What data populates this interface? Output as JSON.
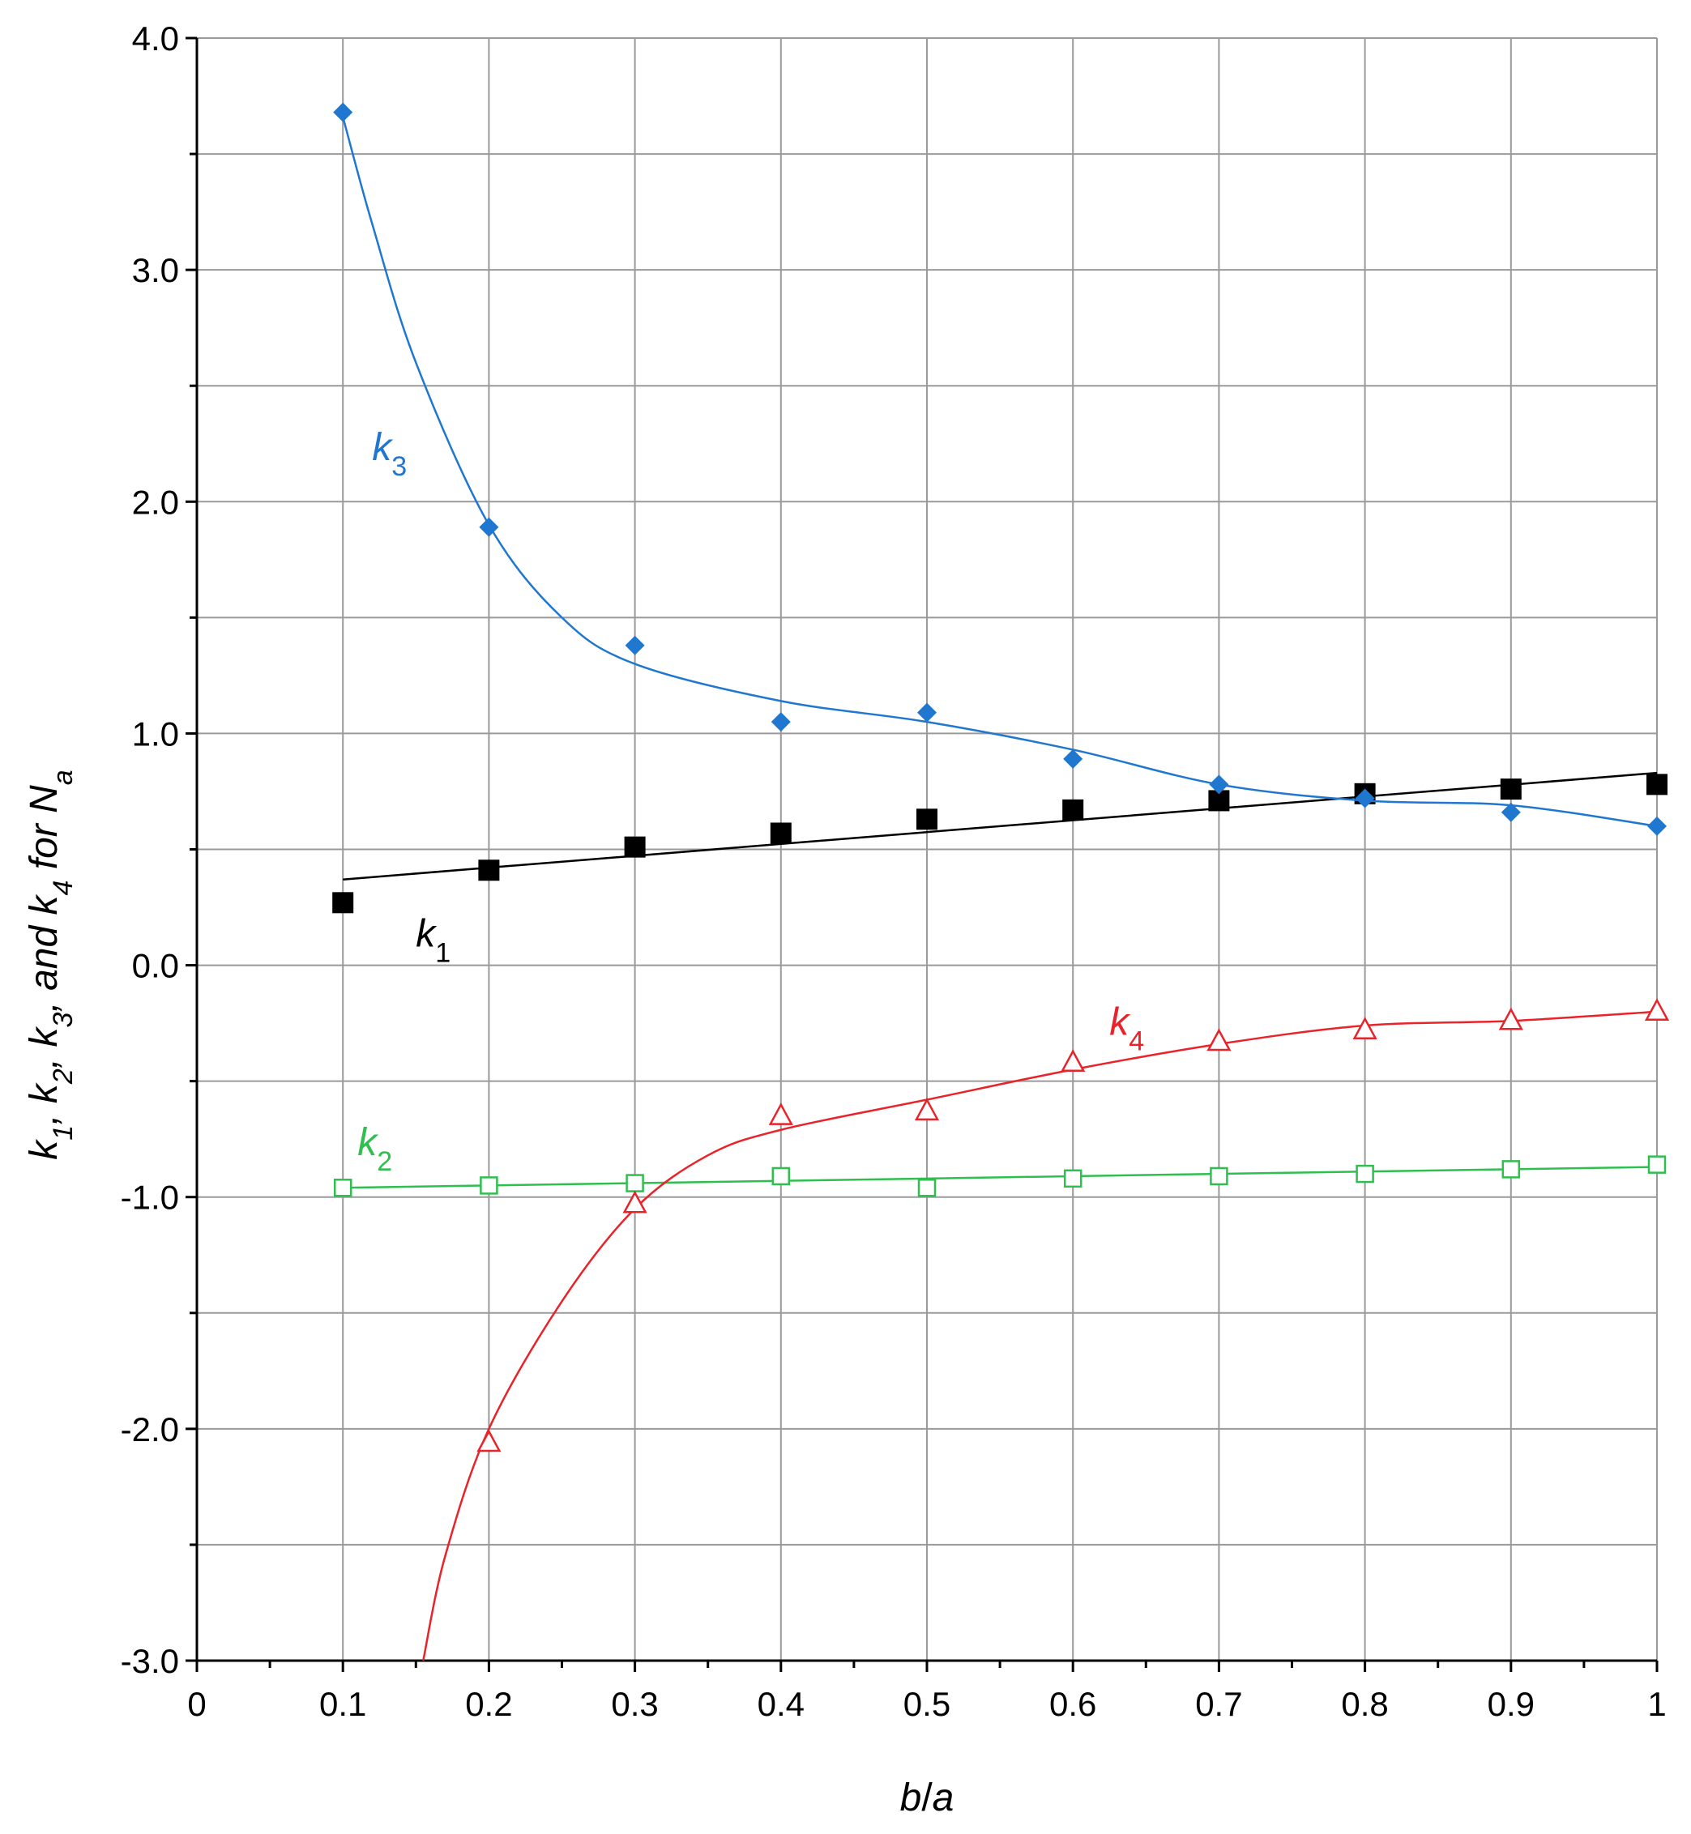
{
  "chart_data": {
    "type": "scatter",
    "title": "",
    "xlabel": {
      "main": "b",
      "sep": "/",
      "tail": "a"
    },
    "ylabel": {
      "parts": [
        {
          "t": "k"
        },
        {
          "t": "1",
          "sub": true
        },
        {
          "t": ", "
        },
        {
          "t": "k"
        },
        {
          "t": "2",
          "sub": true
        },
        {
          "t": ", "
        },
        {
          "t": "k"
        },
        {
          "t": "3",
          "sub": true
        },
        {
          "t": ", and "
        },
        {
          "t": "k"
        },
        {
          "t": "4",
          "sub": true
        },
        {
          "t": "  for "
        },
        {
          "t": "N"
        },
        {
          "t": "a",
          "sub": true
        }
      ]
    },
    "xlim": [
      0,
      1
    ],
    "ylim": [
      -3.0,
      4.0
    ],
    "x_ticks": [
      0,
      0.1,
      0.2,
      0.3,
      0.4,
      0.5,
      0.6,
      0.7,
      0.8,
      0.9,
      1
    ],
    "x_tick_labels": [
      "0",
      "0.1",
      "0.2",
      "0.3",
      "0.4",
      "0.5",
      "0.6",
      "0.7",
      "0.8",
      "0.9",
      "1"
    ],
    "y_ticks": [
      -3.0,
      -2.0,
      -1.0,
      0.0,
      1.0,
      2.0,
      3.0,
      4.0
    ],
    "y_tick_labels": [
      "-3.0",
      "-2.0",
      "-1.0",
      "0.0",
      "1.0",
      "2.0",
      "3.0",
      "4.0"
    ],
    "grid": true,
    "series": [
      {
        "name": "k1",
        "label": "k",
        "label_sub": "1",
        "label_pos": [
          0.15,
          0.08
        ],
        "color": "#000000",
        "marker": "filled-square",
        "x": [
          0.1,
          0.2,
          0.3,
          0.4,
          0.5,
          0.6,
          0.7,
          0.8,
          0.9,
          1.0
        ],
        "y": [
          0.27,
          0.41,
          0.51,
          0.57,
          0.63,
          0.67,
          0.71,
          0.74,
          0.76,
          0.78
        ],
        "fit": {
          "x": [
            0.1,
            1.0
          ],
          "y": [
            0.37,
            0.83
          ]
        }
      },
      {
        "name": "k2",
        "label": "k",
        "label_sub": "2",
        "label_pos": [
          0.11,
          -0.82
        ],
        "color": "#2fbf4f",
        "marker": "open-square",
        "x": [
          0.1,
          0.2,
          0.3,
          0.4,
          0.5,
          0.6,
          0.7,
          0.8,
          0.9,
          1.0
        ],
        "y": [
          -0.96,
          -0.95,
          -0.94,
          -0.91,
          -0.96,
          -0.92,
          -0.91,
          -0.9,
          -0.88,
          -0.86
        ],
        "fit": {
          "x": [
            0.1,
            1.0
          ],
          "y": [
            -0.96,
            -0.87
          ]
        }
      },
      {
        "name": "k3",
        "label": "k",
        "label_sub": "3",
        "label_pos": [
          0.12,
          2.18
        ],
        "color": "#1f77d0",
        "marker": "filled-diamond",
        "x": [
          0.1,
          0.2,
          0.3,
          0.4,
          0.5,
          0.6,
          0.7,
          0.8,
          0.9,
          1.0
        ],
        "y": [
          3.68,
          1.89,
          1.38,
          1.05,
          1.09,
          0.89,
          0.78,
          0.72,
          0.66,
          0.6
        ],
        "fit": {
          "x": [
            0.1,
            0.12,
            0.15,
            0.2,
            0.25,
            0.3,
            0.4,
            0.5,
            0.6,
            0.7,
            0.8,
            0.9,
            1.0
          ],
          "y": [
            3.66,
            3.2,
            2.6,
            1.9,
            1.5,
            1.3,
            1.14,
            1.05,
            0.93,
            0.78,
            0.71,
            0.69,
            0.6
          ]
        }
      },
      {
        "name": "k4",
        "label": "k",
        "label_sub": "4",
        "label_pos": [
          0.625,
          -0.3
        ],
        "color": "#e8232a",
        "marker": "open-triangle",
        "x": [
          0.2,
          0.3,
          0.4,
          0.5,
          0.6,
          0.7,
          0.8,
          0.9,
          1.0
        ],
        "y": [
          -2.06,
          -1.03,
          -0.65,
          -0.63,
          -0.42,
          -0.33,
          -0.28,
          -0.24,
          -0.2
        ],
        "fit": {
          "x": [
            0.155,
            0.17,
            0.2,
            0.25,
            0.3,
            0.35,
            0.4,
            0.5,
            0.6,
            0.7,
            0.8,
            0.9,
            1.0
          ],
          "y": [
            -3.0,
            -2.55,
            -2.0,
            -1.45,
            -1.05,
            -0.82,
            -0.71,
            -0.58,
            -0.45,
            -0.34,
            -0.26,
            -0.24,
            -0.2
          ]
        }
      }
    ]
  }
}
